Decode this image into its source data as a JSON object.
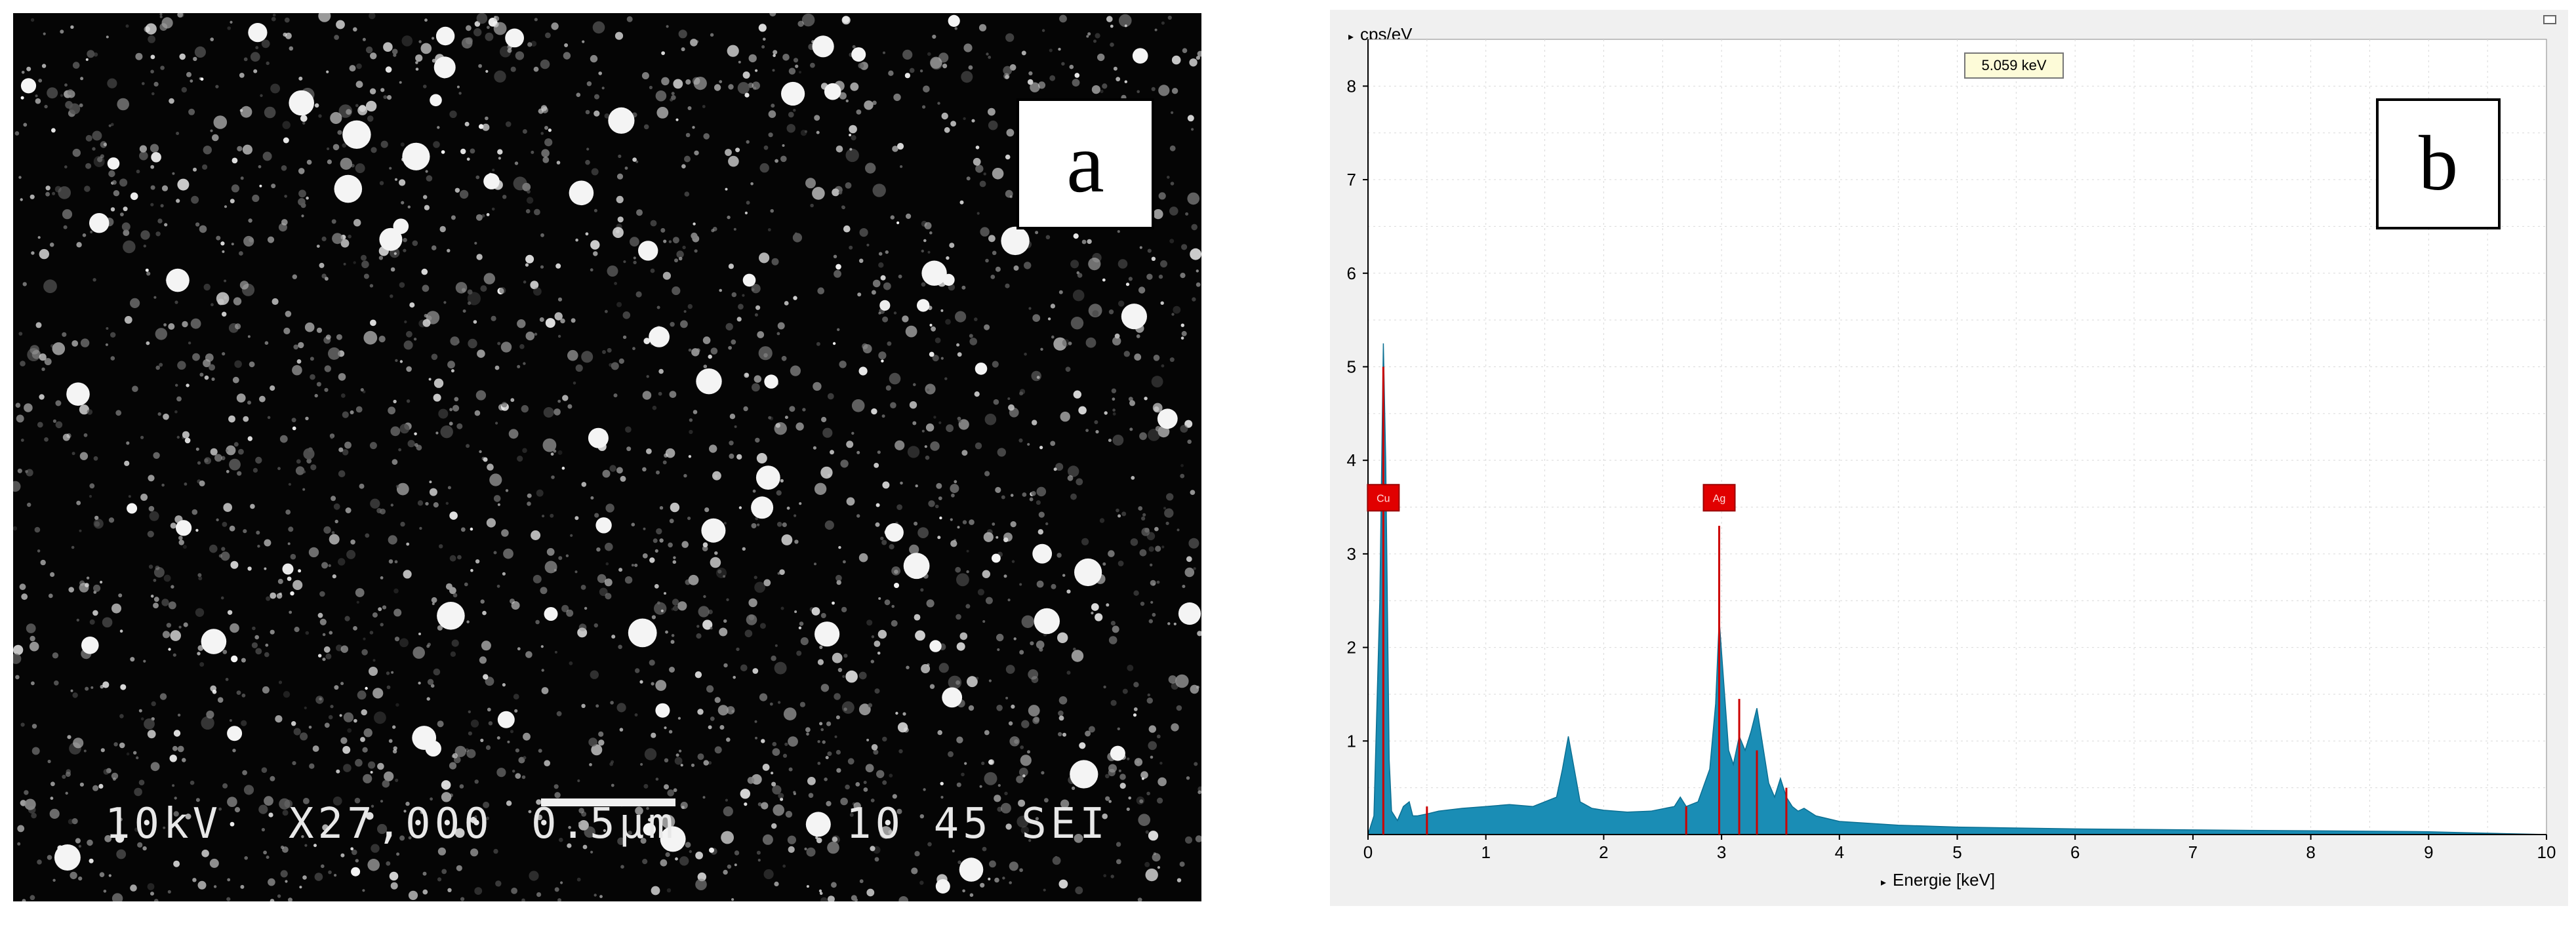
{
  "panel_a": {
    "label": "a",
    "info_bar": {
      "voltage": "10kV",
      "magnification": "X27,000",
      "scale": "0.5μm",
      "code": "10 45 SEI"
    }
  },
  "panel_b": {
    "label": "b",
    "cursor_readout": "5.059 keV",
    "peak_label_1": "Cu",
    "peak_label_2": "Ag",
    "chart_data": {
      "type": "area",
      "xlabel": "Energie [keV]",
      "ylabel": "cps/eV",
      "xlim": [
        0,
        10
      ],
      "ylim": [
        0,
        8.5
      ],
      "grid": true,
      "xticks": [
        0,
        1,
        2,
        3,
        4,
        5,
        6,
        7,
        8,
        9,
        10
      ],
      "yticks": [
        1,
        2,
        3,
        4,
        5,
        6,
        7,
        8
      ],
      "fill_color": "#1a8db5",
      "line_marker_color": "#cc0000",
      "peak_markers": [
        {
          "label": "Cu",
          "x": 0.13,
          "y": 3.6
        },
        {
          "label": "Ag",
          "x": 2.98,
          "y": 3.6
        }
      ],
      "series": [
        {
          "x": [
            0.0,
            0.05,
            0.1,
            0.13,
            0.15,
            0.18,
            0.2,
            0.25,
            0.3,
            0.35,
            0.38,
            0.42,
            0.5,
            0.6,
            0.8,
            1.0,
            1.2,
            1.4,
            1.6,
            1.65,
            1.7,
            1.75,
            1.8,
            1.9,
            2.0,
            2.2,
            2.4,
            2.6,
            2.65,
            2.7,
            2.8,
            2.9,
            2.95,
            2.98,
            3.02,
            3.06,
            3.1,
            3.15,
            3.2,
            3.25,
            3.3,
            3.35,
            3.4,
            3.45,
            3.5,
            3.55,
            3.6,
            3.65,
            3.7,
            3.8,
            4.0,
            4.5,
            5.0,
            6.0,
            7.0,
            8.0,
            9.0,
            9.3,
            10.0
          ],
          "y": [
            0.0,
            0.2,
            2.5,
            5.25,
            4.0,
            0.8,
            0.25,
            0.15,
            0.3,
            0.35,
            0.2,
            0.2,
            0.22,
            0.25,
            0.28,
            0.3,
            0.32,
            0.3,
            0.4,
            0.7,
            1.05,
            0.7,
            0.35,
            0.28,
            0.26,
            0.24,
            0.25,
            0.3,
            0.4,
            0.3,
            0.35,
            0.7,
            1.4,
            2.3,
            1.6,
            0.9,
            0.75,
            1.05,
            0.9,
            1.1,
            1.35,
            0.95,
            0.55,
            0.4,
            0.6,
            0.4,
            0.3,
            0.25,
            0.28,
            0.2,
            0.14,
            0.1,
            0.08,
            0.06,
            0.05,
            0.04,
            0.03,
            0.02,
            0.0
          ]
        }
      ]
    }
  }
}
